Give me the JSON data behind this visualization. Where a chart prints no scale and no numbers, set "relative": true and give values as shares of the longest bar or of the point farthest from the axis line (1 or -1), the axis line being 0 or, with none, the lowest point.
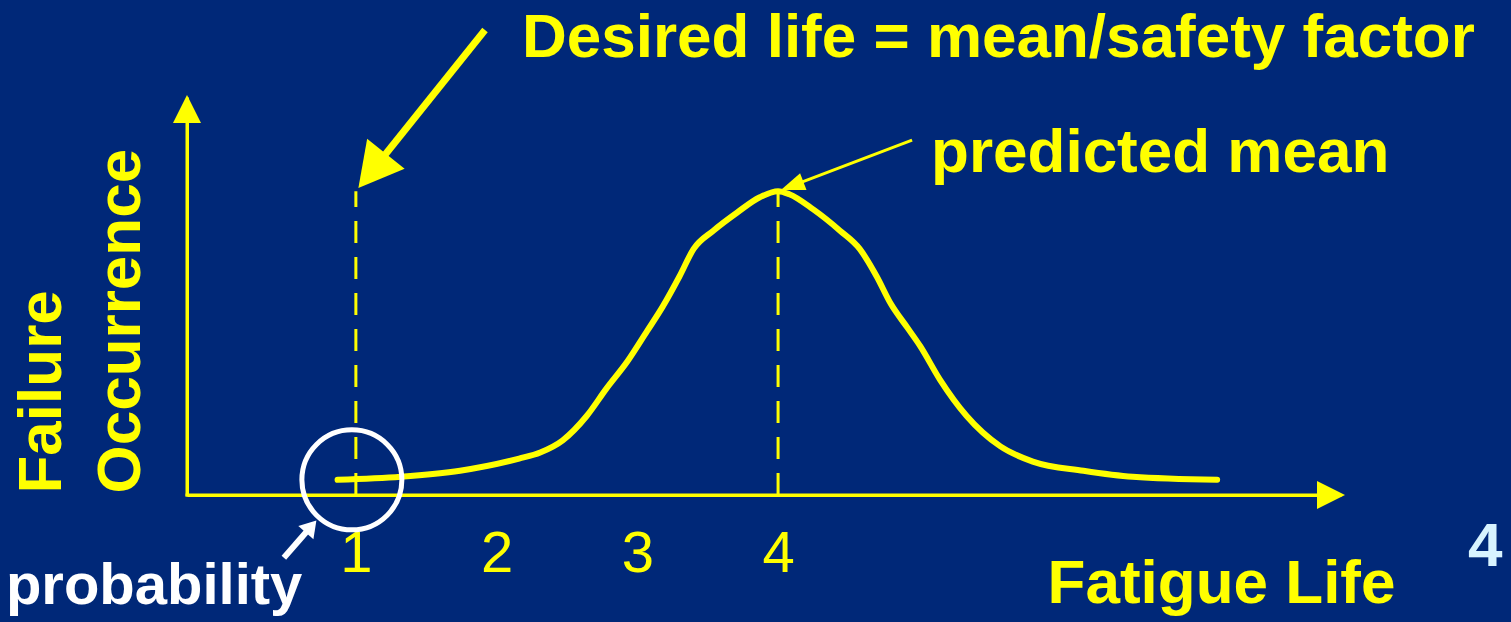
{
  "chart_data": {
    "type": "line",
    "xlabel": "Fatigue Life",
    "ylabel": "Failure Occurrence",
    "relative": true,
    "x": [
      0.87,
      1.32,
      1.74,
      2.16,
      2.31,
      2.47,
      2.64,
      2.78,
      2.93,
      3.07,
      3.18,
      3.3,
      3.4,
      3.54,
      3.71,
      3.87,
      4,
      4.08,
      4.25,
      4.44,
      4.58,
      4.7,
      4.8,
      4.92,
      5.01,
      5.15,
      5.34,
      5.58,
      5.81,
      6.17,
      6.52,
      7.12
    ],
    "series": [
      {
        "color": "#ffff00",
        "values": [
          0.05,
          0.06,
          0.08,
          0.12,
          0.14,
          0.18,
          0.26,
          0.35,
          0.44,
          0.54,
          0.62,
          0.72,
          0.81,
          0.87,
          0.93,
          0.98,
          1,
          0.99,
          0.94,
          0.87,
          0.81,
          0.72,
          0.63,
          0.55,
          0.49,
          0.38,
          0.26,
          0.16,
          0.11,
          0.08,
          0.06,
          0.05
        ]
      }
    ],
    "xlim": [
      -0.2,
      8
    ],
    "xticks": [
      1,
      2,
      3,
      4
    ],
    "ref_lines": [
      {
        "axis": "x",
        "value": 1,
        "color": "#ffff00",
        "line_style": "dashed"
      },
      {
        "axis": "x",
        "value": 4,
        "color": "#ffff00",
        "line_style": "dashed"
      }
    ],
    "annotations": [
      "Desired life = mean/safety factor",
      {
        "text": "predicted mean",
        "x": 4,
        "y": 1
      },
      {
        "text": "probability",
        "x": 1,
        "y": 0.05
      },
      "4"
    ]
  }
}
